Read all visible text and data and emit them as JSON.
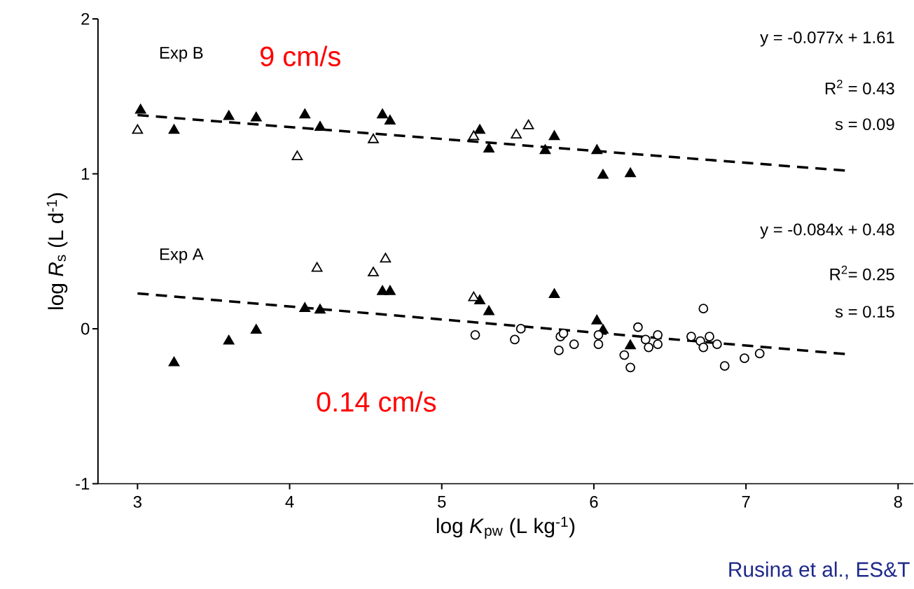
{
  "chart_data": {
    "type": "scatter",
    "xlabel": "log *K*$_{pw}$ (L kg$^{-1}$)",
    "ylabel": "log *R*$_{s}$ (L d$^{-1}$)",
    "xlim": [
      2.74,
      8.1
    ],
    "ylim": [
      -1,
      2
    ],
    "xticks": [
      3,
      4,
      5,
      6,
      7,
      8
    ],
    "yticks": [
      -1,
      0,
      1,
      2
    ],
    "annotations": [
      "Exp B",
      "9 cm/s",
      "y = -0.077x + 1.61",
      "R$^{2}$ = 0.43",
      "s = 0.09",
      "Exp A",
      "y = -0.084x + 0.48",
      "R$^{2}$= 0.25",
      "s = 0.15",
      "0.14 cm/s",
      "Rusina et al., ES&T"
    ],
    "series": [
      {
        "color": "#000000",
        "marker": "triangle",
        "x": [
          3.02,
          3.24,
          3.6,
          3.78,
          4.1,
          4.2,
          4.61,
          4.66,
          5.25,
          5.31,
          5.68,
          5.74,
          6.02,
          6.06,
          6.24
        ],
        "values": [
          1.41,
          1.28,
          1.37,
          1.36,
          1.38,
          1.3,
          1.38,
          1.34,
          1.28,
          1.16,
          1.15,
          1.24,
          1.15,
          0.99,
          1.0
        ]
      },
      {
        "color": "#ffffff",
        "marker": "triangle",
        "x": [
          3.0,
          4.05,
          4.55,
          5.21,
          5.49,
          5.57
        ],
        "values": [
          1.28,
          1.11,
          1.22,
          1.24,
          1.25,
          1.31
        ]
      },
      {
        "color": "#000000",
        "marker": "triangle",
        "x": [
          3.24,
          3.6,
          3.78,
          4.1,
          4.2,
          4.61,
          4.66,
          5.25,
          5.31,
          5.74,
          6.02,
          6.06,
          6.24
        ],
        "values": [
          -0.22,
          -0.08,
          -0.01,
          0.13,
          0.12,
          0.24,
          0.24,
          0.18,
          0.11,
          0.22,
          0.05,
          -0.01,
          -0.11
        ]
      },
      {
        "color": "#ffffff",
        "marker": "triangle",
        "x": [
          4.18,
          4.55,
          4.63,
          5.21
        ],
        "values": [
          0.39,
          0.36,
          0.45,
          0.2
        ]
      },
      {
        "color": "#ffffff",
        "marker": "circle",
        "x": [
          5.22,
          5.48,
          5.52,
          5.77,
          5.78,
          5.8,
          5.87,
          6.03,
          6.03,
          6.2,
          6.24,
          6.29,
          6.34,
          6.36,
          6.42,
          6.42,
          6.64,
          6.7,
          6.72,
          6.72,
          6.76,
          6.81,
          6.86,
          6.99,
          7.09
        ],
        "values": [
          -0.04,
          -0.07,
          0.0,
          -0.14,
          -0.05,
          -0.03,
          -0.1,
          -0.04,
          -0.1,
          -0.17,
          -0.25,
          0.01,
          -0.07,
          -0.12,
          -0.04,
          -0.1,
          -0.05,
          -0.08,
          0.13,
          -0.12,
          -0.05,
          -0.1,
          -0.24,
          -0.19,
          -0.16
        ]
      },
      {
        "type": "line",
        "color": "#000000",
        "marker": "none",
        "line_style": "dashed",
        "x": [
          3.0,
          7.65
        ],
        "values": [
          1.379,
          1.021
        ]
      },
      {
        "type": "line",
        "color": "#000000",
        "marker": "none",
        "line_style": "dashed",
        "x": [
          3.0,
          7.65
        ],
        "values": [
          0.228,
          -0.163
        ]
      }
    ]
  }
}
